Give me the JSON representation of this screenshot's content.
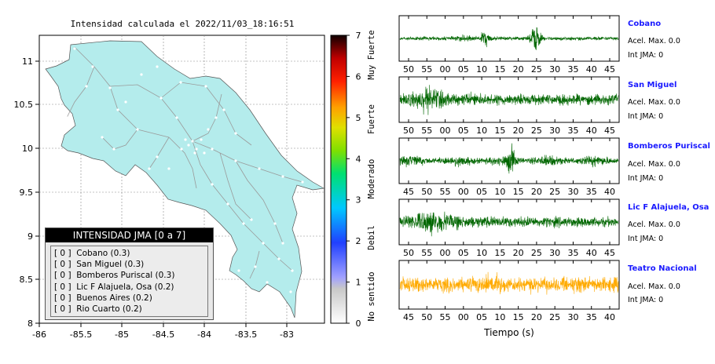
{
  "map": {
    "title": "Intensidad calculada el 2022/11/03_18:16:51",
    "x_ticks": [
      "-86",
      "-85.5",
      "-85",
      "-84.5",
      "-84",
      "-83.5",
      "-83"
    ],
    "y_ticks": [
      "11",
      "10.5",
      "10",
      "9.5",
      "9",
      "8.5",
      "8"
    ],
    "land_color": "#b4ecec"
  },
  "colorbar": {
    "ticks": [
      "0",
      "1",
      "2",
      "3",
      "4",
      "5",
      "6",
      "7"
    ],
    "labels": [
      "No sentido",
      "Debil",
      "Moderado",
      "Fuerte",
      "Muy Fuerte"
    ]
  },
  "legend": {
    "title": "INTENSIDAD JMA [0 a 7]",
    "rows": [
      {
        "jma": "[ 0 ]",
        "name": "Cobano (0.3)"
      },
      {
        "jma": "[ 0 ]",
        "name": "San Miguel (0.3)"
      },
      {
        "jma": "[ 0 ]",
        "name": "Bomberos Puriscal (0.3)"
      },
      {
        "jma": "[ 0 ]",
        "name": "Lic F Alajuela, Osa (0.2)"
      },
      {
        "jma": "[ 0 ]",
        "name": "Buenos Aires (0.2)"
      },
      {
        "jma": "[ 0 ]",
        "name": "Rio Cuarto (0.2)"
      }
    ]
  },
  "stations": [
    {
      "name": "Cobano",
      "acel": "Acel. Max. 0.0",
      "int": "Int JMA: 0",
      "color": "#006600",
      "ticks": [
        "50",
        "55",
        "00",
        "05",
        "10",
        "15",
        "20",
        "25",
        "30",
        "35",
        "40",
        "45"
      ]
    },
    {
      "name": "San Miguel",
      "acel": "Acel. Max. 0.0",
      "int": "Int JMA: 0",
      "color": "#006600",
      "ticks": [
        "50",
        "55",
        "00",
        "05",
        "10",
        "15",
        "20",
        "25",
        "30",
        "35",
        "40",
        "45"
      ]
    },
    {
      "name": "Bomberos Puriscal",
      "acel": "Acel. Max. 0.0",
      "int": "Int JMA: 0",
      "color": "#006600",
      "ticks": [
        "45",
        "50",
        "55",
        "00",
        "05",
        "10",
        "15",
        "20",
        "25",
        "30",
        "35",
        "40"
      ]
    },
    {
      "name": "Lic F Alajuela, Osa",
      "acel": "Acel. Max. 0.0",
      "int": "Int JMA: 0",
      "color": "#006600",
      "ticks": [
        "50",
        "55",
        "00",
        "05",
        "10",
        "15",
        "20",
        "25",
        "30",
        "35",
        "40",
        "45"
      ]
    },
    {
      "name": "Teatro Nacional",
      "acel": "Acel. Max. 0.0",
      "int": "Int JMA: 0",
      "color": "#ffaa00",
      "ticks": [
        "45",
        "50",
        "55",
        "00",
        "05",
        "10",
        "15",
        "20",
        "25",
        "30",
        "35",
        "40"
      ]
    }
  ],
  "xlabel": "Tiempo (s)",
  "chart_data": [
    {
      "type": "heatmap",
      "title": "Intensidad calculada el 2022/11/03_18:16:51",
      "xlim": [
        -86,
        -82.6
      ],
      "ylim": [
        8,
        11.3
      ],
      "colorbar_range": [
        0,
        7
      ]
    },
    {
      "type": "line",
      "xlabel": "Tiempo (s)",
      "series": [
        {
          "name": "Cobano",
          "peaks_at_tick": [
            "10",
            "25"
          ]
        },
        {
          "name": "San Miguel",
          "peaks_at_tick": [
            "55"
          ]
        },
        {
          "name": "Bomberos Puriscal",
          "peaks_at_tick": [
            "15"
          ]
        },
        {
          "name": "Lic F Alajuela, Osa",
          "peaks_at_tick": [
            "55"
          ]
        },
        {
          "name": "Teatro Nacional",
          "peaks_at_tick": []
        }
      ]
    }
  ]
}
